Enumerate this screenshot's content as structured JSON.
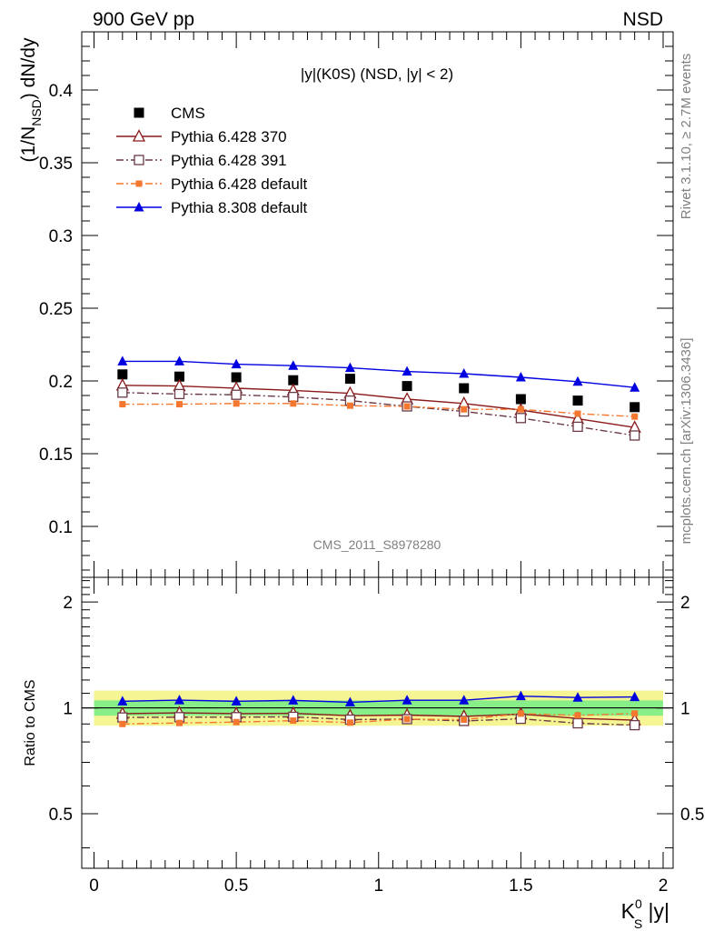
{
  "header": {
    "left": "900 GeV pp",
    "right": "NSD",
    "rivet": "Rivet 3.1.10, ≥ 2.7M events",
    "mcplots": "mcplots.cern.ch [arXiv:1306.3436]"
  },
  "chart_data": [
    {
      "type": "scatter",
      "title": "|y|(K0S) (NSD, |y| < 2)",
      "watermark": "CMS_2011_S8978280",
      "ylabel_main": "(1/N",
      "ylabel_sub": "NSD",
      "ylabel_tail": ") dN/dy",
      "xlim": [
        0,
        2
      ],
      "ylim": [
        0.065,
        0.44
      ],
      "yticks": [
        "0.1",
        "0.15",
        "0.2",
        "0.25",
        "0.3",
        "0.35",
        "0.4"
      ],
      "x": [
        0.1,
        0.3,
        0.5,
        0.7,
        0.9,
        1.1,
        1.3,
        1.5,
        1.7,
        1.9
      ],
      "legend_position": "top-left",
      "series": [
        {
          "name": "CMS",
          "color": "#000000",
          "marker": "square-filled",
          "line": "none",
          "values": [
            0.2045,
            0.203,
            0.2025,
            0.2005,
            0.2015,
            0.1965,
            0.195,
            0.1875,
            0.1865,
            0.182
          ]
        },
        {
          "name": "Pythia 6.428 370",
          "color": "#8b1a1a",
          "marker": "triangle-open",
          "line": "solid",
          "values": [
            0.197,
            0.1965,
            0.195,
            0.1935,
            0.1915,
            0.1875,
            0.1845,
            0.18,
            0.174,
            0.168
          ]
        },
        {
          "name": "Pythia 6.428 391",
          "color": "#6b3a45",
          "marker": "square-open",
          "line": "dashdot",
          "values": [
            0.192,
            0.191,
            0.1905,
            0.189,
            0.1865,
            0.1825,
            0.179,
            0.1745,
            0.1685,
            0.1625
          ]
        },
        {
          "name": "Pythia 6.428 default",
          "color": "#f4772f",
          "marker": "square-small",
          "line": "dashdot",
          "values": [
            0.184,
            0.184,
            0.1845,
            0.1845,
            0.183,
            0.1825,
            0.1805,
            0.1805,
            0.1775,
            0.1755
          ]
        },
        {
          "name": "Pythia 8.308 default",
          "color": "#0000e0",
          "marker": "triangle-filled",
          "line": "solid",
          "values": [
            0.2135,
            0.2135,
            0.2115,
            0.2105,
            0.209,
            0.2065,
            0.205,
            0.2025,
            0.1995,
            0.1955
          ]
        }
      ]
    },
    {
      "type": "scatter",
      "ylabel": "Ratio to CMS",
      "xlabel_main": "K",
      "xlabel_sup": "0",
      "xlabel_sub": "S",
      "xlabel_tail": " |y|",
      "xlim": [
        0,
        2
      ],
      "ylim": [
        0.35,
        2.35
      ],
      "ylog": true,
      "xticks": [
        "0",
        "0.5",
        "1",
        "1.5",
        "2"
      ],
      "yticks": [
        "0.5",
        "1",
        "2"
      ],
      "band_inner": [
        0.95,
        1.05
      ],
      "band_outer": [
        0.89,
        1.12
      ],
      "band_inner_color": "#88ee88",
      "band_outer_color": "#f5f593",
      "x": [
        0.1,
        0.3,
        0.5,
        0.7,
        0.9,
        1.1,
        1.3,
        1.5,
        1.7,
        1.9
      ],
      "series": [
        {
          "name": "Pythia 6.428 370",
          "color": "#8b1a1a",
          "marker": "triangle-open",
          "line": "solid",
          "values": [
            0.963,
            0.968,
            0.963,
            0.965,
            0.95,
            0.954,
            0.946,
            0.96,
            0.933,
            0.923
          ]
        },
        {
          "name": "Pythia 6.428 391",
          "color": "#6b3a45",
          "marker": "square-open",
          "line": "dashdot",
          "values": [
            0.939,
            0.941,
            0.941,
            0.943,
            0.926,
            0.929,
            0.918,
            0.931,
            0.904,
            0.893
          ]
        },
        {
          "name": "Pythia 6.428 default",
          "color": "#f4772f",
          "marker": "square-small",
          "line": "dashdot",
          "values": [
            0.9,
            0.906,
            0.911,
            0.92,
            0.908,
            0.929,
            0.926,
            0.963,
            0.952,
            0.964
          ]
        },
        {
          "name": "Pythia 8.308 default",
          "color": "#0000e0",
          "marker": "triangle-filled",
          "line": "solid",
          "values": [
            1.044,
            1.052,
            1.044,
            1.05,
            1.037,
            1.051,
            1.051,
            1.08,
            1.07,
            1.074
          ]
        }
      ]
    }
  ]
}
